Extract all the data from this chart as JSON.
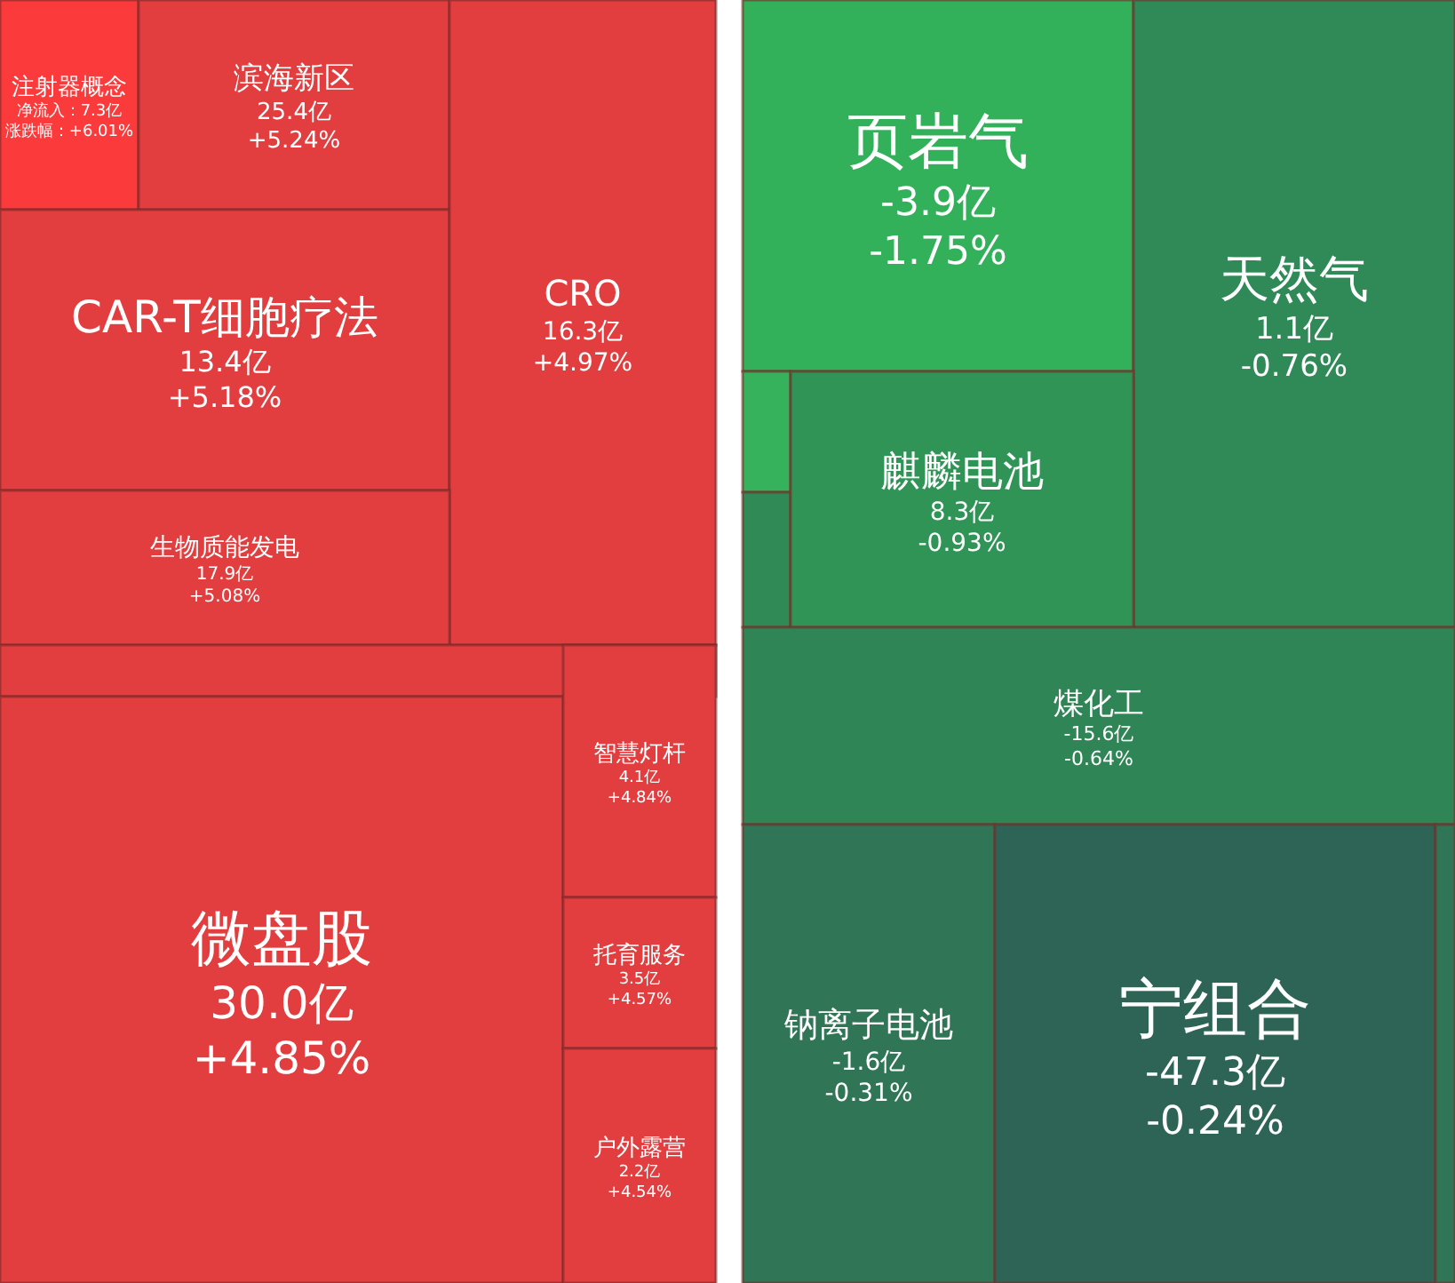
{
  "chart_data": {
    "type": "other",
    "categories": [
      "注射器概念",
      "滨海新区",
      "CAR-T细胞疗法",
      "CRO",
      "生物质能发电",
      null,
      "微盘股",
      "智慧灯杆",
      "托育服务",
      "户外露营",
      "页岩气",
      "天然气",
      null,
      null,
      "麒麟电池",
      "煤化工",
      "钠离子电池",
      "宁组合",
      null
    ],
    "series": [
      {
        "colors": [
          "#fb3b3b",
          "#e23e3f",
          "#e23e3f",
          "#e23e3f",
          "#e23e3f",
          "#e23e3f",
          "#e23e3f",
          "#e23e3f",
          "#e23e3f",
          "#e23e3f",
          "#33b05a",
          "#2f8a57",
          "#35b25b",
          "#2f8a55",
          "#2f9455",
          "#2f8556",
          "#2f7556",
          "#2e6456",
          "#2f7556"
        ],
        "values": [
          7.3,
          25.4,
          13.4,
          16.3,
          17.9,
          null,
          30.0,
          4.1,
          3.5,
          2.2,
          -3.9,
          1.1,
          null,
          null,
          8.3,
          -15.6,
          -1.6,
          -47.3,
          null
        ],
        "value_labels": [
          "净流入：7.3亿",
          "25.4亿",
          "13.4亿",
          "16.3亿",
          "17.9亿",
          null,
          "30.0亿",
          "4.1亿",
          "3.5亿",
          "2.2亿",
          "-3.9亿",
          "1.1亿",
          null,
          null,
          "8.3亿",
          "-15.6亿",
          "-1.6亿",
          "-47.3亿",
          null
        ]
      },
      {
        "color": "#ffffff",
        "values": [
          6.01,
          5.24,
          5.18,
          4.97,
          5.08,
          null,
          4.85,
          4.84,
          4.57,
          4.54,
          -1.75,
          -0.76,
          null,
          null,
          -0.93,
          -0.64,
          -0.31,
          -0.24,
          null
        ],
        "value_labels": [
          "涨跌幅：+6.01%",
          "+5.24%",
          "+5.18%",
          "+4.97%",
          "+5.08%",
          null,
          "+4.85%",
          "+4.84%",
          "+4.57%",
          "+4.54%",
          "-1.75%",
          "-0.76%",
          null,
          null,
          "-0.93%",
          "-0.64%",
          "-0.31%",
          "-0.24%",
          null
        ]
      }
    ]
  }
}
